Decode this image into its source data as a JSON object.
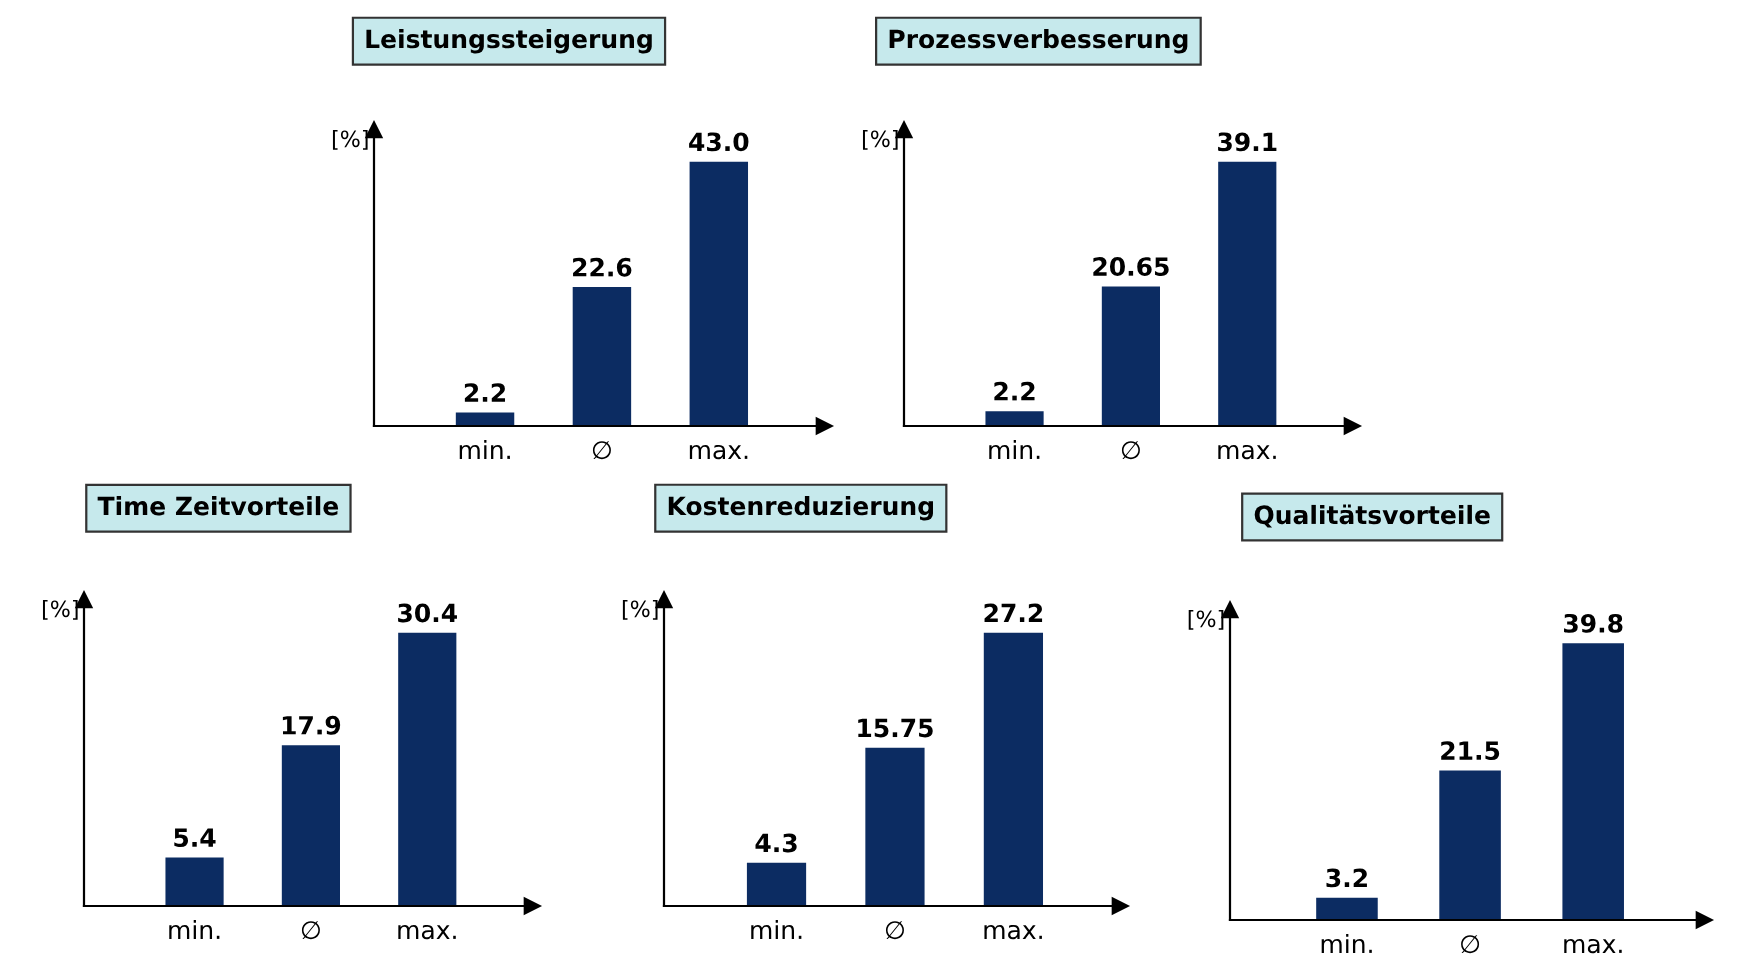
{
  "chart_data": [
    {
      "type": "bar",
      "title": "Leistungssteigerung",
      "ylabel": "[%]",
      "categories": [
        "min.",
        "∅",
        "max."
      ],
      "values": [
        2.2,
        22.6,
        43.0
      ],
      "value_labels": [
        "2.2",
        "22.6",
        "43.0"
      ],
      "color": "#0c2c62",
      "grid": false,
      "legend": false
    },
    {
      "type": "bar",
      "title": "Prozessverbesserung",
      "ylabel": "[%]",
      "categories": [
        "min.",
        "∅",
        "max."
      ],
      "values": [
        2.2,
        20.65,
        39.1
      ],
      "value_labels": [
        "2.2",
        "20.65",
        "39.1"
      ],
      "color": "#0c2c62",
      "grid": false,
      "legend": false
    },
    {
      "type": "bar",
      "title": "Time Zeitvorteile",
      "ylabel": "[%]",
      "categories": [
        "min.",
        "∅",
        "max."
      ],
      "values": [
        5.4,
        17.9,
        30.4
      ],
      "value_labels": [
        "5.4",
        "17.9",
        "30.4"
      ],
      "color": "#0c2c62",
      "grid": false,
      "legend": false
    },
    {
      "type": "bar",
      "title": "Kostenreduzierung",
      "ylabel": "[%]",
      "categories": [
        "min.",
        "∅",
        "max."
      ],
      "values": [
        4.3,
        15.75,
        27.2
      ],
      "value_labels": [
        "4.3",
        "15.75",
        "27.2"
      ],
      "color": "#0c2c62",
      "grid": false,
      "legend": false
    },
    {
      "type": "bar",
      "title": "Qualitätsvorteile",
      "ylabel": "[%]",
      "categories": [
        "min.",
        "∅",
        "max."
      ],
      "values": [
        3.2,
        21.5,
        39.8
      ],
      "value_labels": [
        "3.2",
        "21.5",
        "39.8"
      ],
      "color": "#0c2c62",
      "grid": false,
      "legend": false
    }
  ]
}
